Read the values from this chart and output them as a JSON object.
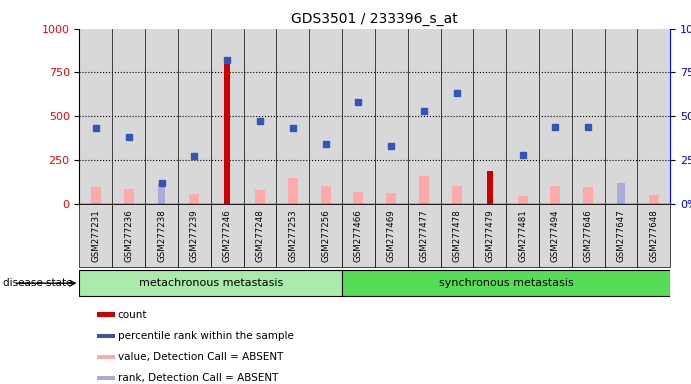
{
  "title": "GDS3501 / 233396_s_at",
  "samples": [
    "GSM277231",
    "GSM277236",
    "GSM277238",
    "GSM277239",
    "GSM277246",
    "GSM277248",
    "GSM277253",
    "GSM277256",
    "GSM277466",
    "GSM277469",
    "GSM277477",
    "GSM277478",
    "GSM277479",
    "GSM277481",
    "GSM277494",
    "GSM277646",
    "GSM277647",
    "GSM277648"
  ],
  "group1_label": "metachronous metastasis",
  "group2_label": "synchronous metastasis",
  "group1_count": 8,
  "group2_count": 10,
  "red_bars": [
    0,
    0,
    0,
    0,
    800,
    0,
    0,
    0,
    0,
    0,
    0,
    0,
    185,
    0,
    0,
    0,
    0,
    0
  ],
  "blue_squares_pct": [
    43,
    38,
    12,
    27,
    82,
    47,
    43,
    34,
    58,
    33,
    53,
    63,
    0,
    28,
    44,
    44,
    0,
    0
  ],
  "pink_bars": [
    95,
    85,
    0,
    55,
    0,
    80,
    145,
    100,
    65,
    60,
    155,
    100,
    0,
    45,
    100,
    95,
    0,
    50
  ],
  "lavender_bars": [
    0,
    0,
    120,
    0,
    0,
    0,
    0,
    0,
    0,
    0,
    0,
    0,
    0,
    0,
    0,
    0,
    115,
    0
  ],
  "ylim": [
    0,
    1000
  ],
  "y2lim": [
    0,
    100
  ],
  "yticks": [
    0,
    250,
    500,
    750,
    1000
  ],
  "y2ticks": [
    0,
    25,
    50,
    75,
    100
  ],
  "red_color": "#cc0000",
  "blue_color": "#3355bb",
  "pink_color": "#ffaaaa",
  "lavender_color": "#aaaadd",
  "green_color": "#77dd77",
  "green_dark_color": "#44bb44",
  "legend_items": [
    "count",
    "percentile rank within the sample",
    "value, Detection Call = ABSENT",
    "rank, Detection Call = ABSENT"
  ]
}
